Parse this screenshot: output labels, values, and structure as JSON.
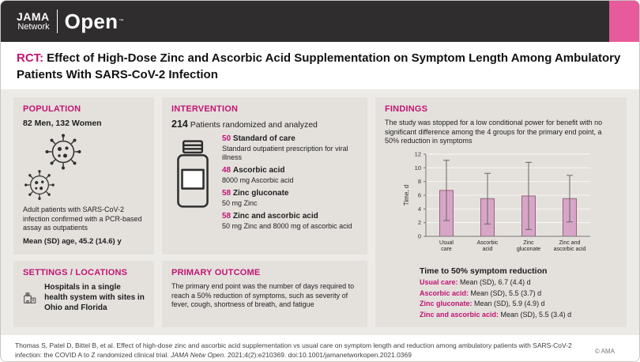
{
  "header": {
    "logo": {
      "line1": "JAMA",
      "line2": "Network",
      "wordmark": "Open",
      "tm": "™"
    }
  },
  "title": {
    "tag": "RCT:",
    "text": "Effect of High-Dose Zinc and Ascorbic Acid Supplementation on Symptom Length Among Ambulatory Patients With SARS-CoV-2 Infection"
  },
  "population": {
    "heading": "POPULATION",
    "counts": "82 Men, 132 Women",
    "description": "Adult patients with SARS-CoV-2 infection confirmed with a PCR-based assay as outpatients",
    "age": "Mean (SD) age, 45.2 (14.6) y"
  },
  "settings": {
    "heading": "SETTINGS / LOCATIONS",
    "text": "Hospitals in a single health system with sites in Ohio and Florida"
  },
  "intervention": {
    "heading": "INTERVENTION",
    "total": "214",
    "total_label": "Patients randomized and analyzed",
    "arms": [
      {
        "n": "50",
        "name": "Standard of care",
        "detail": "Standard outpatient prescription for viral illness"
      },
      {
        "n": "48",
        "name": "Ascorbic acid",
        "detail": "8000 mg Ascorbic acid"
      },
      {
        "n": "58",
        "name": "Zinc gluconate",
        "detail": "50 mg Zinc"
      },
      {
        "n": "58",
        "name": "Zinc and ascorbic acid",
        "detail": "50 mg Zinc and 8000 mg of ascorbic acid"
      }
    ]
  },
  "primary_outcome": {
    "heading": "PRIMARY OUTCOME",
    "text": "The primary end point was the number of days required to reach a 50% reduction of symptoms, such as severity of fever, cough, shortness of breath, and fatigue"
  },
  "findings": {
    "heading": "FINDINGS",
    "summary": "The study was stopped for a low conditional power for benefit with no significant difference among the 4 groups for the primary end point, a 50% reduction in symptoms",
    "results_title": "Time to 50% symptom reduction",
    "results": [
      {
        "label": "Usual care:",
        "value": "Mean (SD), 6.7 (4.4) d"
      },
      {
        "label": "Ascorbic acid:",
        "value": "Mean (SD), 5.5 (3.7) d"
      },
      {
        "label": "Zinc gluconate:",
        "value": "Mean (SD), 5.9 (4.9) d"
      },
      {
        "label": "Zinc and ascorbic acid:",
        "value": "Mean (SD), 5.5 (3.4) d"
      }
    ]
  },
  "chart_data": {
    "type": "bar",
    "title": "",
    "xlabel": "",
    "ylabel": "Time, d",
    "ylim": [
      0,
      12
    ],
    "yticks": [
      0,
      2,
      4,
      6,
      8,
      10,
      12
    ],
    "grid": true,
    "categories": [
      "Usual care",
      "Ascorbic acid",
      "Zinc gluconate",
      "Zinc and ascorbic acid"
    ],
    "tick_label_lines": [
      [
        "Usual",
        "care"
      ],
      [
        "Ascorbic",
        "acid"
      ],
      [
        "Zinc",
        "gluconate"
      ],
      [
        "Zinc and",
        "ascorbic acid"
      ]
    ],
    "values": [
      6.7,
      5.5,
      5.9,
      5.5
    ],
    "sd": [
      4.4,
      3.7,
      4.9,
      3.4
    ],
    "error_bars": "mean ± SD",
    "bar_fill": "#d7a6c6",
    "bar_border": "#96627f"
  },
  "footer": {
    "citation_pre": "Thomas S, Patel D, Bittel B, et al. Effect of high-dose zinc and ascorbic acid supplementation vs usual care on symptom length and reduction among ambulatory patients with SARS-CoV-2 infection: the COVID A to Z randomized clinical trial. ",
    "citation_journal": "JAMA Netw Open.",
    "citation_post": " 2021;4(2):e210369. doi:10.1001/jamanetworkopen.2021.0369",
    "copyright": "© AMA"
  }
}
